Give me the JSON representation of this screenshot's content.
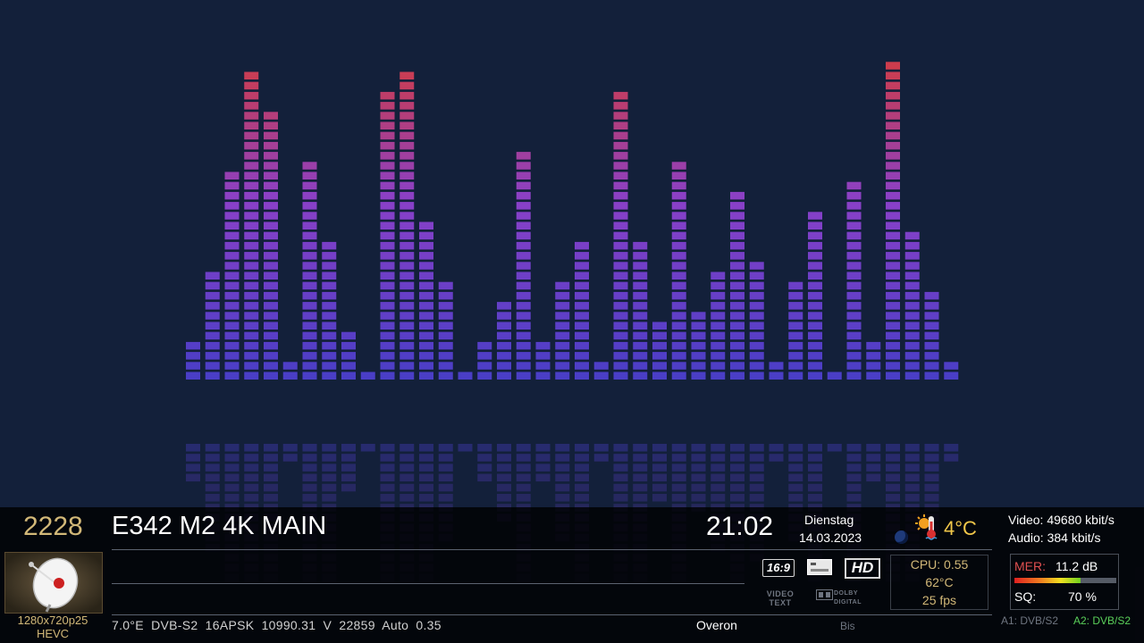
{
  "colors": {
    "background": "#13203a",
    "bar_low": "#4a3ec6",
    "bar_mid": "#8a40c8",
    "bar_high": "#d23c44",
    "gold": "#d2b878",
    "mer_red": "#e05050",
    "tuner_active": "#5ad05a"
  },
  "visualizer": {
    "type": "spectrum-equalizer",
    "bar_levels": [
      4,
      11,
      21,
      31,
      27,
      2,
      22,
      14,
      5,
      1,
      29,
      31,
      16,
      10,
      1,
      4,
      8,
      23,
      4,
      10,
      14,
      2,
      29,
      14,
      6,
      22,
      7,
      11,
      19,
      12,
      2,
      10,
      17,
      1,
      20,
      4,
      32,
      15,
      9,
      2
    ]
  },
  "channel": {
    "number": "2228",
    "name": "E342 M2 4K MAIN",
    "provider": "Overon",
    "next_label": "Bis"
  },
  "clock": {
    "time": "21:02",
    "weekday": "Dienstag",
    "date": "14.03.2023"
  },
  "weather": {
    "icon": "sun-thermometer-icon",
    "temperature": "4°C"
  },
  "bitrate": {
    "video": "Video: 49680 kbit/s",
    "audio": "Audio: 384 kbit/s"
  },
  "picon": {
    "icon": "satellite-dish-icon",
    "resolution": "1280x720p25",
    "codec": "HEVC"
  },
  "transponder": {
    "text": "7.0°E  DVB-S2  16APSK  10990.31  V  22859  Auto  0.35"
  },
  "badges": {
    "aspect": "16:9",
    "subtitle_icon": "subtitle-icon",
    "hd": "HD",
    "videotext": "VIDEO TEXT",
    "dolby": "DOLBY DIGITAL"
  },
  "system": {
    "cpu": "CPU: 0.55",
    "temp": "62°C",
    "fps": "25 fps"
  },
  "signal": {
    "mer_label": "MER:",
    "mer_value": "11.2 dB",
    "mer_level": 0.65,
    "sq_label": "SQ:",
    "sq_value": "70 %"
  },
  "tuners": {
    "a1": "A1: DVB/S2",
    "a2": "A2: DVB/S2"
  }
}
